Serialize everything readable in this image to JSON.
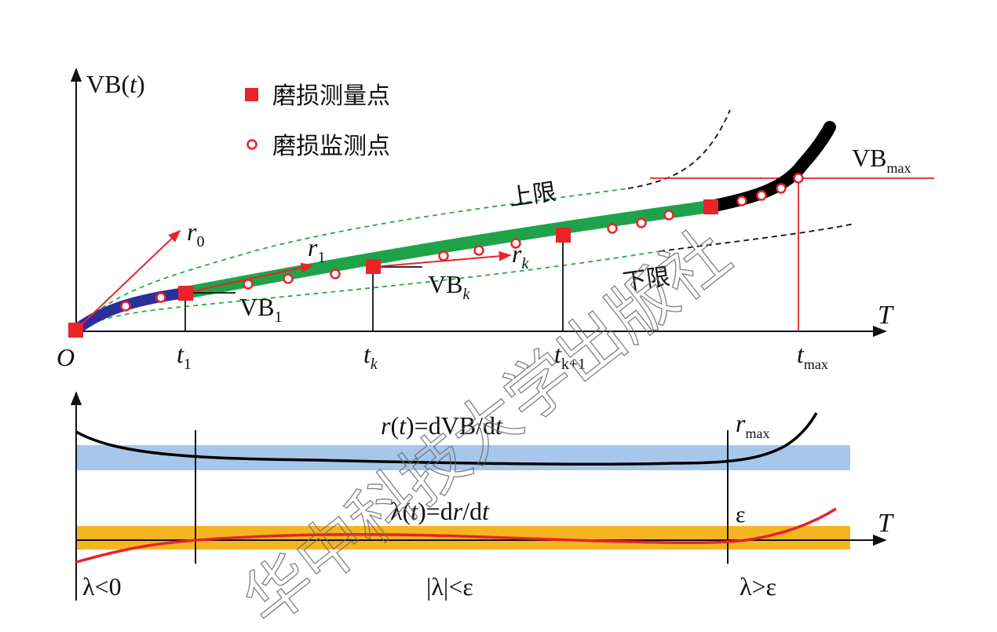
{
  "colors": {
    "curve_blue": "#2a2f9c",
    "curve_green": "#1fa34a",
    "curve_black": "#000000",
    "marker_red": "#e8232a",
    "bound_green": "#2aa84a",
    "band_blue": "#a7c7ea",
    "band_orange": "#f5b521"
  },
  "legend": {
    "measure_points": "磨损测量点",
    "monitor_points": "磨损监测点"
  },
  "top_chart": {
    "y_axis_label_main": "VB(",
    "y_axis_label_var": "t",
    "y_axis_label_close": ")",
    "x_axis_label": "T",
    "origin_label": "O",
    "upper_limit_label": "上限",
    "lower_limit_label": "下限",
    "vb1_main": "VB",
    "vb1_sub": "1",
    "vbk_main": "VB",
    "vbk_sub": "k",
    "vbmax_main": "VB",
    "vbmax_sub": "max",
    "r0_main": "r",
    "r0_sub": "0",
    "r1_main": "r",
    "r1_sub": "1",
    "rk_main": "r",
    "rk_sub": "k",
    "t1_main": "t",
    "t1_sub": "1",
    "tk_main": "t",
    "tk_sub": "k",
    "tk1_main": "t",
    "tk1_sub": "k+1",
    "tmax_main": "t",
    "tmax_sub": "max"
  },
  "bottom_chart": {
    "rate_formula_a": "r",
    "rate_formula_b": "(",
    "rate_formula_c": "t",
    "rate_formula_d": ")=dVB/d",
    "rate_formula_e": "t",
    "rmax_main": "r",
    "rmax_sub": "max",
    "accel_formula_a": "λ(",
    "accel_formula_b": "t",
    "accel_formula_c": ")=d",
    "accel_formula_d": "r",
    "accel_formula_e": "/d",
    "accel_formula_f": "t",
    "epsilon_label": "ε",
    "x_axis_label": "T",
    "region_left": "λ<0",
    "region_mid": "|λ|<ε",
    "region_right": "λ>ε"
  },
  "watermark": "华中科技大学出版社"
}
